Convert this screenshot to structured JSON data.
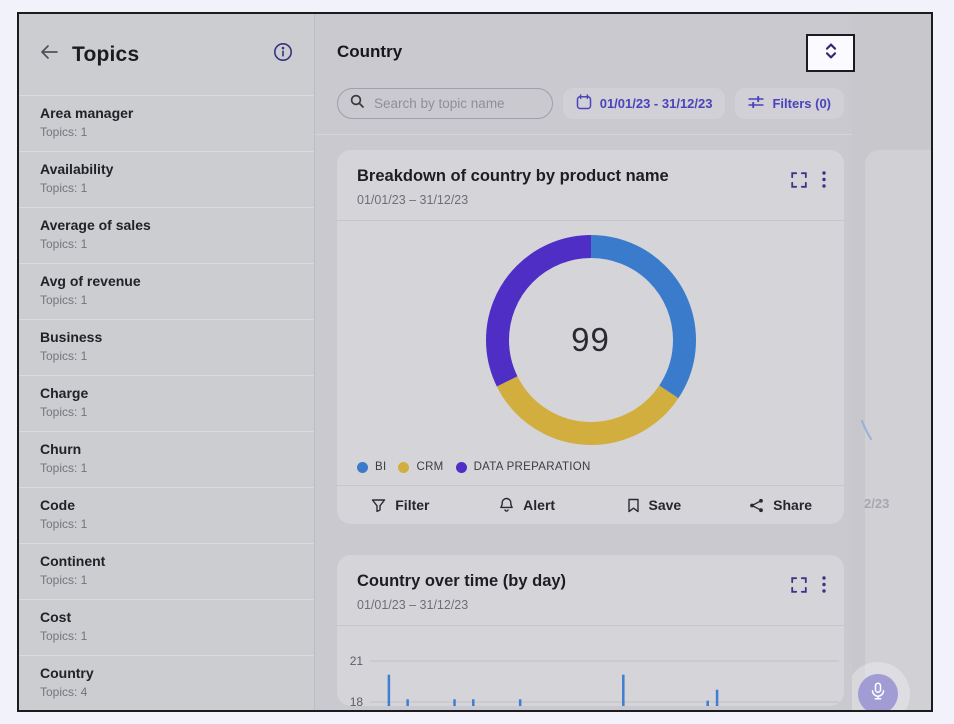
{
  "sidebar": {
    "title": "Topics",
    "items": [
      {
        "label": "Area manager",
        "sub": "Topics: 1"
      },
      {
        "label": "Availability",
        "sub": "Topics: 1"
      },
      {
        "label": "Average of sales",
        "sub": "Topics: 1"
      },
      {
        "label": "Avg of revenue",
        "sub": "Topics: 1"
      },
      {
        "label": "Business",
        "sub": "Topics: 1"
      },
      {
        "label": "Charge",
        "sub": "Topics: 1"
      },
      {
        "label": "Churn",
        "sub": "Topics: 1"
      },
      {
        "label": "Code",
        "sub": "Topics: 1"
      },
      {
        "label": "Continent",
        "sub": "Topics: 1"
      },
      {
        "label": "Cost",
        "sub": "Topics: 1"
      },
      {
        "label": "Country",
        "sub": "Topics: 4"
      }
    ]
  },
  "main": {
    "title": "Country",
    "search": {
      "placeholder": "Search by topic name",
      "value": ""
    },
    "date_range": "01/01/23 - 31/12/23",
    "filters_label": "Filters (0)",
    "card1": {
      "title": "Breakdown of country by product name",
      "subtitle": "01/01/23 – 31/12/23",
      "actions": [
        {
          "label": "Filter",
          "icon": "funnel-icon"
        },
        {
          "label": "Alert",
          "icon": "bell-icon"
        },
        {
          "label": "Save",
          "icon": "bookmark-icon"
        },
        {
          "label": "Share",
          "icon": "share-icon"
        }
      ]
    },
    "card2": {
      "title": "Country over time (by day)",
      "subtitle": "01/01/23 – 31/12/23"
    }
  },
  "backdrop": {
    "ghost_text": "2/23"
  },
  "colors": {
    "accent_indigo": "#4a43ba",
    "icon_indigo": "#3b3486",
    "donut_blue": "#3a7ccb",
    "donut_yellow": "#d2ae3e",
    "donut_purple": "#4f2ec6",
    "bar_blue": "#3f7ed2",
    "frame_border": "#1b1b20",
    "highlight_button_bg": "#fafaff",
    "mic_button_purple": "#a29cd5"
  },
  "chart_data": [
    {
      "type": "pie",
      "subtype": "donut",
      "title": "Breakdown of country by product name",
      "date_range": "01/01/23 – 31/12/23",
      "center_label": "99",
      "total": 99,
      "start_angle_deg": 0,
      "direction": "clockwise",
      "legend_position": "bottom-left",
      "segments": [
        {
          "name": "BI",
          "value": 34,
          "color": "#3a7ccb"
        },
        {
          "name": "CRM",
          "value": 33,
          "color": "#d2ae3e"
        },
        {
          "name": "DATA PREPARATION",
          "value": 32,
          "color": "#4f2ec6"
        }
      ]
    },
    {
      "type": "bar",
      "title": "Country over time (by day)",
      "date_range": "01/01/23 – 31/12/23",
      "ylim_visible": [
        18,
        21
      ],
      "yticks": [
        21,
        18
      ],
      "grid": true,
      "bar_color": "#3f7ed2",
      "x_range": "days from 01/01/23 (x axis clipped at bottom of frame)",
      "bars": [
        {
          "x_frac": 0.04,
          "value": 20.0
        },
        {
          "x_frac": 0.08,
          "value": 18.2
        },
        {
          "x_frac": 0.18,
          "value": 18.2
        },
        {
          "x_frac": 0.22,
          "value": 18.2
        },
        {
          "x_frac": 0.32,
          "value": 18.2
        },
        {
          "x_frac": 0.54,
          "value": 20.0
        },
        {
          "x_frac": 0.72,
          "value": 18.1
        },
        {
          "x_frac": 0.74,
          "value": 18.9
        }
      ]
    }
  ]
}
